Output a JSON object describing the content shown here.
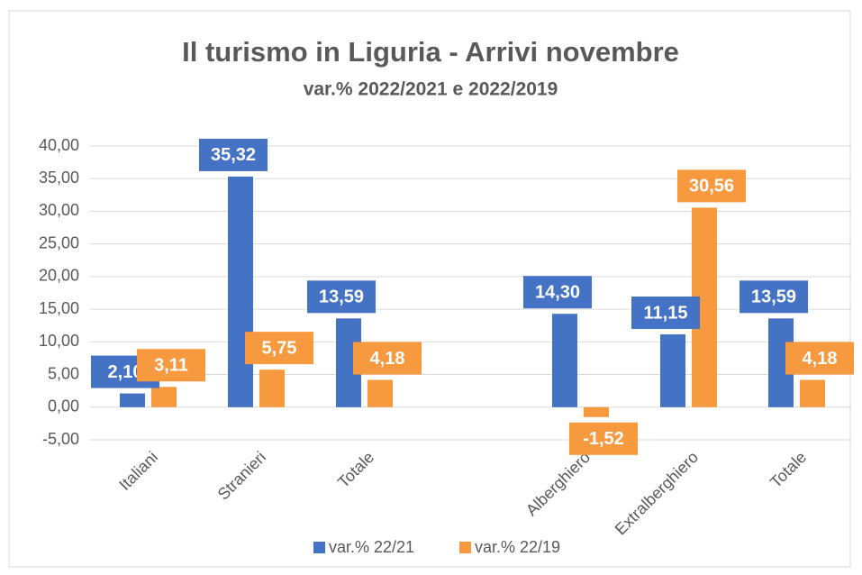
{
  "chart_data": {
    "type": "bar",
    "title": "Il turismo in Liguria - Arrivi novembre",
    "subtitle": "var.% 2022/2021 e 2022/2019",
    "categories": [
      "Italiani",
      "Stranieri",
      "Totale",
      null,
      "Alberghiero",
      "Extralberghiero",
      "Totale"
    ],
    "series": [
      {
        "name": "var.% 22/21",
        "color": "#4472c4",
        "values": [
          2.1,
          35.32,
          13.59,
          null,
          14.3,
          11.15,
          13.59
        ],
        "value_labels": [
          "2,10",
          "35,32",
          "13,59",
          null,
          "14,30",
          "11,15",
          "13,59"
        ]
      },
      {
        "name": "var.% 22/19",
        "color": "#f79a3f",
        "values": [
          3.11,
          5.75,
          4.18,
          null,
          -1.52,
          30.56,
          4.18
        ],
        "value_labels": [
          "3,11",
          "5,75",
          "4,18",
          null,
          "-1,52",
          "30,56",
          "4,18"
        ]
      }
    ],
    "ylim": [
      -5,
      40
    ],
    "yticks": [
      {
        "value": -5,
        "label": "-5,00"
      },
      {
        "value": 0,
        "label": "0,00"
      },
      {
        "value": 5,
        "label": "5,00"
      },
      {
        "value": 10,
        "label": "10,00"
      },
      {
        "value": 15,
        "label": "15,00"
      },
      {
        "value": 20,
        "label": "20,00"
      },
      {
        "value": 25,
        "label": "25,00"
      },
      {
        "value": 30,
        "label": "30,00"
      },
      {
        "value": 35,
        "label": "35,00"
      },
      {
        "value": 40,
        "label": "40,00"
      }
    ],
    "grid": true,
    "legend": "bottom"
  }
}
